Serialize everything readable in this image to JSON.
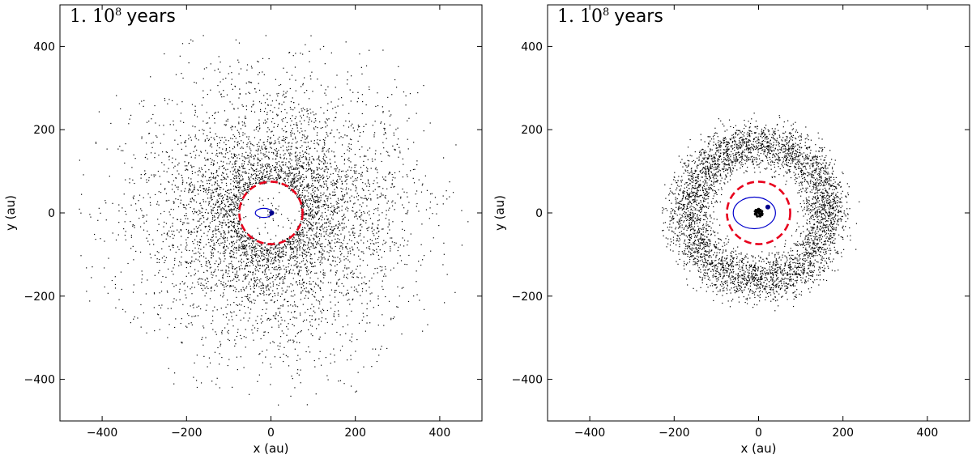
{
  "chart_data": [
    {
      "type": "scatter",
      "title": "",
      "panel_label": {
        "prefix": "1. 10",
        "exponent": "8",
        "suffix": "years"
      },
      "xlabel": "x (au)",
      "ylabel": "y (au)",
      "xlim": [
        -500,
        500
      ],
      "ylim": [
        -500,
        500
      ],
      "xticks": [
        -400,
        -200,
        0,
        200,
        400
      ],
      "yticks": [
        -400,
        -200,
        0,
        200,
        400
      ],
      "xtick_labels": [
        "−400",
        "−200",
        "0",
        "200",
        "400"
      ],
      "ytick_labels": [
        "−400",
        "−200",
        "0",
        "200",
        "400"
      ],
      "grid": false,
      "particles": {
        "count": 5200,
        "inner_radius": 0,
        "outer_radius": 480,
        "peak_radius": 130,
        "color": "#000000"
      },
      "critical_circle": {
        "radius": 75,
        "color": "#e8001c",
        "style": "dashed"
      },
      "orbit": {
        "a": 20,
        "b": 11,
        "center_x": -17,
        "center_y": 0,
        "color": "#0000cc"
      },
      "planet": {
        "x": 2,
        "y": 0,
        "color": "#00008b"
      },
      "central_cluster": {
        "x": 0,
        "y": 0,
        "radius": 0
      }
    },
    {
      "type": "scatter",
      "title": "",
      "panel_label": {
        "prefix": "1. 10",
        "exponent": "8",
        "suffix": "years"
      },
      "xlabel": "x (au)",
      "ylabel": "y (au)",
      "xlim": [
        -500,
        500
      ],
      "ylim": [
        -500,
        500
      ],
      "xticks": [
        -400,
        -200,
        0,
        200,
        400
      ],
      "yticks": [
        -400,
        -200,
        0,
        200,
        400
      ],
      "xtick_labels": [
        "−400",
        "−200",
        "0",
        "200",
        "400"
      ],
      "ytick_labels": [
        "−400",
        "−200",
        "0",
        "200",
        "400"
      ],
      "grid": false,
      "particles": {
        "count": 4300,
        "inner_radius": 90,
        "outer_radius": 260,
        "peak_radius": 165,
        "color": "#000000"
      },
      "critical_circle": {
        "radius": 75,
        "color": "#e8001c",
        "style": "dashed"
      },
      "orbit": {
        "a": 50,
        "b": 38,
        "center_x": -10,
        "center_y": 0,
        "color": "#0000cc"
      },
      "planet": {
        "x": 22,
        "y": 14,
        "color": "#00008b"
      },
      "central_cluster": {
        "x": 0,
        "y": 0,
        "radius": 10
      }
    }
  ]
}
